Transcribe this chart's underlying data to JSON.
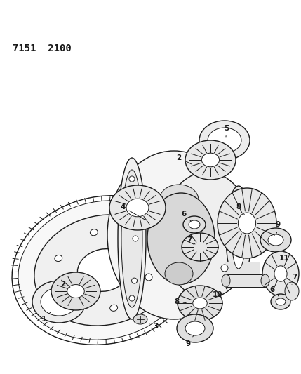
{
  "title_code": "7151  2100",
  "bg_color": "#ffffff",
  "line_color": "#1a1a1a",
  "fig_width": 4.29,
  "fig_height": 5.33,
  "dpi": 100
}
